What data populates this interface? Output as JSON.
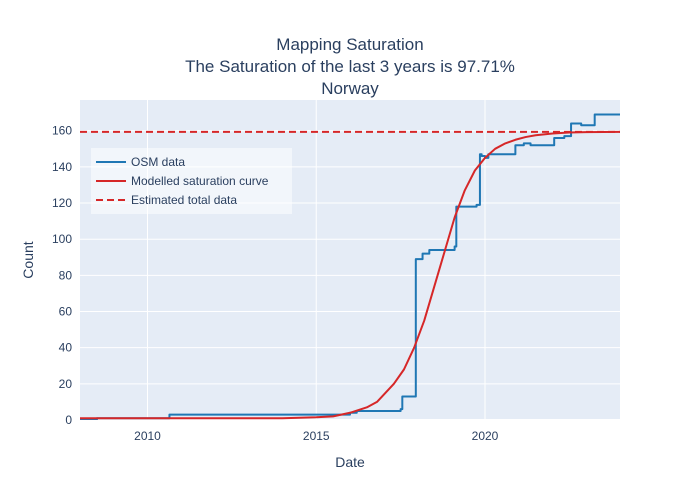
{
  "chart_data": {
    "type": "line",
    "title_lines": [
      "Mapping Saturation",
      "The Saturation of the last 3 years is 97.71%",
      "Norway"
    ],
    "xlabel": "Date",
    "ylabel": "Count",
    "xlim": [
      2008.0,
      2024.0
    ],
    "ylim": [
      0,
      177
    ],
    "x_ticks": [
      2010,
      2015,
      2020
    ],
    "y_ticks": [
      0,
      20,
      40,
      60,
      80,
      100,
      120,
      140,
      160
    ],
    "grid": true,
    "legend_position": "upper-left",
    "series": [
      {
        "name": "OSM data",
        "color": "#1f77b4",
        "line_style": "solid",
        "shape": "step",
        "x": [
          2008.0,
          2008.5,
          2010.6,
          2010.65,
          2015.3,
          2015.5,
          2016.0,
          2016.2,
          2017.5,
          2017.55,
          2017.9,
          2017.95,
          2018.1,
          2018.15,
          2018.3,
          2018.35,
          2019.0,
          2019.1,
          2019.15,
          2019.5,
          2019.75,
          2019.85,
          2019.9,
          2020.0,
          2020.1,
          2020.5,
          2020.8,
          2020.9,
          2021.1,
          2021.15,
          2021.3,
          2021.35,
          2022.0,
          2022.05,
          2022.3,
          2022.35,
          2022.5,
          2022.55,
          2022.8,
          2022.85,
          2023.2,
          2023.25,
          2024.0
        ],
        "y": [
          0,
          1,
          1,
          3,
          3,
          3,
          4,
          5,
          6,
          13,
          13,
          89,
          89,
          92,
          92,
          94,
          94,
          96,
          118,
          118,
          119,
          147,
          146,
          145,
          147,
          147,
          147,
          152,
          152,
          153,
          153,
          152,
          152,
          156,
          156,
          157,
          157,
          164,
          164,
          163,
          163,
          169,
          169
        ]
      },
      {
        "name": "Modelled saturation curve",
        "color": "#d62728",
        "line_style": "solid",
        "shape": "line",
        "x": [
          2008.0,
          2009.0,
          2010.0,
          2011.0,
          2012.0,
          2013.0,
          2014.0,
          2015.0,
          2015.5,
          2016.0,
          2016.5,
          2016.8,
          2017.0,
          2017.3,
          2017.6,
          2017.9,
          2018.2,
          2018.5,
          2018.8,
          2019.1,
          2019.4,
          2019.7,
          2020.0,
          2020.3,
          2020.6,
          2020.9,
          2021.2,
          2021.5,
          2022.0,
          2022.5,
          2023.0,
          2023.5,
          2024.0
        ],
        "y": [
          1,
          1,
          1,
          1,
          1,
          1,
          1,
          1.5,
          2,
          4,
          7,
          10,
          14,
          20,
          28,
          40,
          55,
          74,
          93,
          112,
          127,
          138,
          145,
          150,
          153,
          155,
          156.5,
          157.5,
          158.5,
          159,
          159.2,
          159.3,
          159.4
        ]
      },
      {
        "name": "Estimated total data",
        "color": "#d62728",
        "line_style": "dashed",
        "shape": "hline",
        "value": 159.4
      }
    ]
  }
}
